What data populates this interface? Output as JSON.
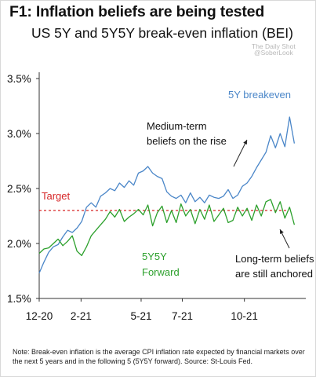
{
  "header": {
    "title": "F1: Inflation beliefs are being tested",
    "subtitle": "US 5Y and 5Y5Y break-even inflation (BEI)"
  },
  "watermark": {
    "line1": "The Daily Shot",
    "handle": "@SoberLook"
  },
  "annotations": {
    "target": "Target",
    "series_5y": "5Y breakeven",
    "series_5y5y_line1": "5Y5Y",
    "series_5y5y_line2": "Forward",
    "medium_line1": "Medium-term",
    "medium_line2": "beliefs on the rise",
    "long_line1": "Long-term beliefs",
    "long_line2": "are still anchored"
  },
  "note": "Note: Break-even inflation is the average CPI inflation rate expected by financial markets over the next 5 years and in the following 5 (5Y5Y forward). Source: St-Louis Fed.",
  "colors": {
    "five_year": "#4a86c8",
    "five_y_five_y": "#2ca02c",
    "target": "#d62728"
  },
  "chart_data": {
    "type": "line",
    "title": "F1: Inflation beliefs are being tested",
    "subtitle": "US 5Y and 5Y5Y break-even inflation (BEI)",
    "xlabel": "",
    "ylabel": "",
    "x_range": [
      "2020-12-01",
      "2021-12-31"
    ],
    "ylim": [
      1.5,
      3.5
    ],
    "yticks": [
      1.5,
      2.0,
      2.5,
      3.0,
      3.5
    ],
    "ytick_labels": [
      "1.5%",
      "2.0%",
      "2.5%",
      "3.0%",
      "3.5%"
    ],
    "xticks": [
      "2020-12-01",
      "2021-02-01",
      "2021-05-01",
      "2021-07-01",
      "2021-10-01"
    ],
    "xtick_labels": [
      "12-20",
      "2-21",
      "5-21",
      "7-21",
      "10-21"
    ],
    "grid": false,
    "target": 2.3,
    "series": [
      {
        "name": "5Y breakeven",
        "color": "#4a86c8",
        "x": [
          "2020-12-01",
          "2020-12-08",
          "2020-12-15",
          "2020-12-22",
          "2020-12-29",
          "2021-01-05",
          "2021-01-12",
          "2021-01-19",
          "2021-01-26",
          "2021-02-02",
          "2021-02-09",
          "2021-02-16",
          "2021-02-23",
          "2021-03-02",
          "2021-03-09",
          "2021-03-16",
          "2021-03-23",
          "2021-03-30",
          "2021-04-06",
          "2021-04-13",
          "2021-04-20",
          "2021-04-27",
          "2021-05-04",
          "2021-05-11",
          "2021-05-18",
          "2021-05-25",
          "2021-06-01",
          "2021-06-08",
          "2021-06-15",
          "2021-06-22",
          "2021-06-29",
          "2021-07-06",
          "2021-07-13",
          "2021-07-20",
          "2021-07-27",
          "2021-08-03",
          "2021-08-10",
          "2021-08-17",
          "2021-08-24",
          "2021-08-31",
          "2021-09-07",
          "2021-09-14",
          "2021-09-21",
          "2021-09-28",
          "2021-10-05",
          "2021-10-12",
          "2021-10-19",
          "2021-10-26",
          "2021-11-02",
          "2021-11-09",
          "2021-11-16",
          "2021-11-23",
          "2021-11-30",
          "2021-12-07",
          "2021-12-14"
        ],
        "values": [
          1.73,
          1.83,
          1.92,
          1.97,
          1.99,
          2.06,
          2.12,
          2.1,
          2.14,
          2.2,
          2.33,
          2.37,
          2.33,
          2.43,
          2.46,
          2.5,
          2.48,
          2.55,
          2.51,
          2.57,
          2.53,
          2.64,
          2.66,
          2.7,
          2.64,
          2.61,
          2.59,
          2.47,
          2.43,
          2.41,
          2.44,
          2.37,
          2.46,
          2.38,
          2.42,
          2.37,
          2.44,
          2.42,
          2.41,
          2.43,
          2.49,
          2.41,
          2.44,
          2.52,
          2.55,
          2.61,
          2.69,
          2.76,
          2.83,
          2.98,
          2.87,
          3.0,
          2.88,
          3.15,
          2.91
        ]
      },
      {
        "name": "5Y5Y Forward",
        "color": "#2ca02c",
        "x": [
          "2020-12-01",
          "2020-12-08",
          "2020-12-15",
          "2020-12-22",
          "2020-12-29",
          "2021-01-05",
          "2021-01-12",
          "2021-01-19",
          "2021-01-26",
          "2021-02-02",
          "2021-02-09",
          "2021-02-16",
          "2021-02-23",
          "2021-03-02",
          "2021-03-09",
          "2021-03-16",
          "2021-03-23",
          "2021-03-30",
          "2021-04-06",
          "2021-04-13",
          "2021-04-20",
          "2021-04-27",
          "2021-05-04",
          "2021-05-11",
          "2021-05-18",
          "2021-05-25",
          "2021-06-01",
          "2021-06-08",
          "2021-06-15",
          "2021-06-22",
          "2021-06-29",
          "2021-07-06",
          "2021-07-13",
          "2021-07-20",
          "2021-07-27",
          "2021-08-03",
          "2021-08-10",
          "2021-08-17",
          "2021-08-24",
          "2021-08-31",
          "2021-09-07",
          "2021-09-14",
          "2021-09-21",
          "2021-09-28",
          "2021-10-05",
          "2021-10-12",
          "2021-10-19",
          "2021-10-26",
          "2021-11-02",
          "2021-11-09",
          "2021-11-16",
          "2021-11-23",
          "2021-11-30",
          "2021-12-07",
          "2021-12-14"
        ],
        "values": [
          1.91,
          1.95,
          1.96,
          2.0,
          2.04,
          1.98,
          2.02,
          2.07,
          1.93,
          1.89,
          1.97,
          2.07,
          2.12,
          2.17,
          2.22,
          2.29,
          2.24,
          2.31,
          2.2,
          2.24,
          2.27,
          2.31,
          2.26,
          2.35,
          2.16,
          2.28,
          2.34,
          2.19,
          2.3,
          2.19,
          2.36,
          2.25,
          2.31,
          2.18,
          2.31,
          2.22,
          2.35,
          2.2,
          2.26,
          2.32,
          2.19,
          2.21,
          2.33,
          2.25,
          2.32,
          2.21,
          2.35,
          2.25,
          2.38,
          2.4,
          2.28,
          2.38,
          2.23,
          2.33,
          2.17
        ]
      }
    ]
  }
}
